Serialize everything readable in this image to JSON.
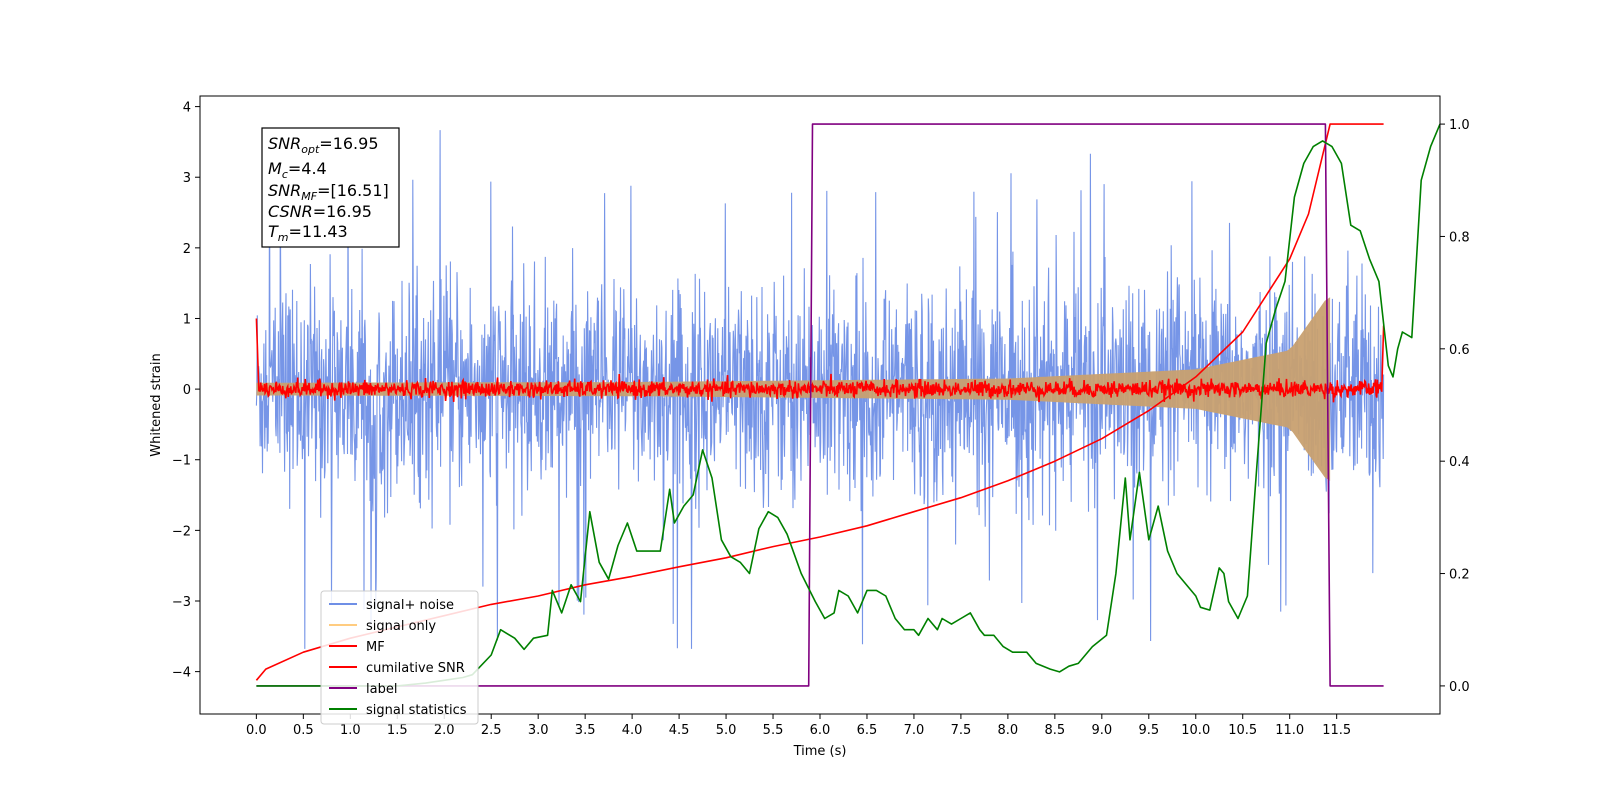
{
  "chart_data": {
    "type": "line",
    "xlabel": "Time (s)",
    "ylabel": "Whitened strain",
    "xlim": [
      -0.6,
      12.6
    ],
    "ylim": [
      -4.6,
      4.15
    ],
    "y2lim": [
      -0.05,
      1.05
    ],
    "xticks": [
      "0.0",
      "0.5",
      "1.0",
      "1.5",
      "2.0",
      "2.5",
      "3.0",
      "3.5",
      "4.0",
      "4.5",
      "5.0",
      "5.5",
      "6.0",
      "6.5",
      "7.0",
      "7.5",
      "8.0",
      "8.5",
      "9.0",
      "9.5",
      "10.0",
      "10.5",
      "11.0",
      "11.5"
    ],
    "yticks": [
      "4",
      "3",
      "2",
      "1",
      "0",
      "−1",
      "−2",
      "−3",
      "−4"
    ],
    "y2ticks": [
      "1.0",
      "0.8",
      "0.6",
      "0.4",
      "0.2",
      "0.0"
    ],
    "info_box": [
      {
        "base": "SNR",
        "sub": "opt",
        "value": "=16.95"
      },
      {
        "base": "M",
        "sub": "c",
        "value": "=4.4"
      },
      {
        "base": "SNR",
        "sub": "MF",
        "value": "=[16.51]"
      },
      {
        "base": "CSNR",
        "sub": "",
        "value": "=16.95"
      },
      {
        "base": "T",
        "sub": "m",
        "value": "=11.43"
      }
    ],
    "legend_position": "lower-left",
    "grid": false,
    "series": [
      {
        "name": "signal+ noise",
        "color": "#6f8fe6",
        "axis": "left",
        "kind": "noise",
        "x_range": [
          0.0,
          12.0
        ],
        "amplitude_typical": 1.5,
        "amplitude_peak": 3.75
      },
      {
        "name": "signal only",
        "color": "#ffcc80",
        "axis": "left",
        "kind": "chirp",
        "x_range": [
          0.0,
          11.43
        ],
        "envelope": [
          [
            0.0,
            0.09
          ],
          [
            4.0,
            0.1
          ],
          [
            8.0,
            0.15
          ],
          [
            10.0,
            0.28
          ],
          [
            11.0,
            0.55
          ],
          [
            11.4,
            1.3
          ]
        ]
      },
      {
        "name": "MF",
        "color": "#ff0000",
        "axis": "left",
        "kind": "noise",
        "x_range": [
          0.0,
          12.0
        ],
        "amplitude_typical": 0.06,
        "edge_values": [
          1.0,
          0.9
        ]
      },
      {
        "name": "cumilative SNR",
        "color": "#ff0000",
        "axis": "right",
        "points": [
          [
            0.0,
            0.01
          ],
          [
            0.1,
            0.03
          ],
          [
            0.5,
            0.06
          ],
          [
            1.0,
            0.085
          ],
          [
            1.5,
            0.105
          ],
          [
            2.0,
            0.125
          ],
          [
            2.5,
            0.145
          ],
          [
            3.0,
            0.16
          ],
          [
            3.5,
            0.18
          ],
          [
            4.0,
            0.195
          ],
          [
            4.5,
            0.212
          ],
          [
            5.0,
            0.228
          ],
          [
            5.5,
            0.248
          ],
          [
            6.0,
            0.265
          ],
          [
            6.5,
            0.285
          ],
          [
            7.0,
            0.31
          ],
          [
            7.5,
            0.335
          ],
          [
            8.0,
            0.365
          ],
          [
            8.5,
            0.4
          ],
          [
            9.0,
            0.44
          ],
          [
            9.5,
            0.49
          ],
          [
            10.0,
            0.55
          ],
          [
            10.5,
            0.63
          ],
          [
            11.0,
            0.76
          ],
          [
            11.2,
            0.84
          ],
          [
            11.43,
            1.0
          ],
          [
            12.0,
            1.0
          ]
        ]
      },
      {
        "name": "label",
        "color": "#800080",
        "axis": "right",
        "points": [
          [
            0.0,
            0.0
          ],
          [
            5.88,
            0.0
          ],
          [
            5.92,
            1.0
          ],
          [
            11.38,
            1.0
          ],
          [
            11.43,
            0.0
          ],
          [
            12.0,
            0.0
          ]
        ]
      },
      {
        "name": "signal statistics",
        "color": "#008000",
        "axis": "right",
        "points": [
          [
            0.0,
            0.0
          ],
          [
            0.5,
            0.0
          ],
          [
            1.0,
            0.0
          ],
          [
            1.5,
            0.0
          ],
          [
            1.8,
            0.005
          ],
          [
            2.0,
            0.01
          ],
          [
            2.2,
            0.015
          ],
          [
            2.3,
            0.02
          ],
          [
            2.5,
            0.055
          ],
          [
            2.6,
            0.1
          ],
          [
            2.75,
            0.085
          ],
          [
            2.85,
            0.065
          ],
          [
            2.95,
            0.085
          ],
          [
            3.1,
            0.09
          ],
          [
            3.15,
            0.17
          ],
          [
            3.25,
            0.13
          ],
          [
            3.35,
            0.18
          ],
          [
            3.45,
            0.15
          ],
          [
            3.55,
            0.31
          ],
          [
            3.65,
            0.22
          ],
          [
            3.75,
            0.19
          ],
          [
            3.85,
            0.25
          ],
          [
            3.95,
            0.29
          ],
          [
            4.05,
            0.24
          ],
          [
            4.15,
            0.24
          ],
          [
            4.3,
            0.24
          ],
          [
            4.4,
            0.35
          ],
          [
            4.45,
            0.29
          ],
          [
            4.55,
            0.32
          ],
          [
            4.65,
            0.34
          ],
          [
            4.75,
            0.42
          ],
          [
            4.85,
            0.37
          ],
          [
            4.95,
            0.26
          ],
          [
            5.05,
            0.23
          ],
          [
            5.15,
            0.22
          ],
          [
            5.25,
            0.2
          ],
          [
            5.35,
            0.28
          ],
          [
            5.45,
            0.31
          ],
          [
            5.55,
            0.3
          ],
          [
            5.65,
            0.27
          ],
          [
            5.8,
            0.2
          ],
          [
            5.95,
            0.15
          ],
          [
            6.05,
            0.12
          ],
          [
            6.15,
            0.13
          ],
          [
            6.2,
            0.17
          ],
          [
            6.3,
            0.16
          ],
          [
            6.4,
            0.13
          ],
          [
            6.5,
            0.17
          ],
          [
            6.6,
            0.17
          ],
          [
            6.7,
            0.16
          ],
          [
            6.8,
            0.12
          ],
          [
            6.9,
            0.1
          ],
          [
            7.0,
            0.1
          ],
          [
            7.05,
            0.09
          ],
          [
            7.15,
            0.12
          ],
          [
            7.25,
            0.1
          ],
          [
            7.3,
            0.12
          ],
          [
            7.4,
            0.11
          ],
          [
            7.5,
            0.12
          ],
          [
            7.6,
            0.13
          ],
          [
            7.7,
            0.1
          ],
          [
            7.75,
            0.09
          ],
          [
            7.85,
            0.09
          ],
          [
            7.95,
            0.07
          ],
          [
            8.05,
            0.06
          ],
          [
            8.2,
            0.06
          ],
          [
            8.3,
            0.04
          ],
          [
            8.45,
            0.03
          ],
          [
            8.55,
            0.025
          ],
          [
            8.65,
            0.035
          ],
          [
            8.75,
            0.04
          ],
          [
            8.9,
            0.07
          ],
          [
            9.05,
            0.09
          ],
          [
            9.15,
            0.2
          ],
          [
            9.25,
            0.37
          ],
          [
            9.3,
            0.26
          ],
          [
            9.4,
            0.38
          ],
          [
            9.5,
            0.26
          ],
          [
            9.6,
            0.32
          ],
          [
            9.7,
            0.24
          ],
          [
            9.8,
            0.2
          ],
          [
            9.9,
            0.18
          ],
          [
            10.0,
            0.16
          ],
          [
            10.05,
            0.14
          ],
          [
            10.15,
            0.135
          ],
          [
            10.25,
            0.21
          ],
          [
            10.3,
            0.2
          ],
          [
            10.35,
            0.15
          ],
          [
            10.45,
            0.12
          ],
          [
            10.55,
            0.16
          ],
          [
            10.65,
            0.39
          ],
          [
            10.75,
            0.61
          ],
          [
            10.85,
            0.67
          ],
          [
            10.95,
            0.72
          ],
          [
            11.05,
            0.87
          ],
          [
            11.15,
            0.93
          ],
          [
            11.25,
            0.96
          ],
          [
            11.35,
            0.97
          ],
          [
            11.45,
            0.96
          ],
          [
            11.55,
            0.93
          ],
          [
            11.65,
            0.82
          ],
          [
            11.75,
            0.81
          ],
          [
            11.85,
            0.76
          ],
          [
            11.95,
            0.72
          ],
          [
            12.05,
            0.57
          ],
          [
            12.1,
            0.55
          ],
          [
            12.15,
            0.6
          ],
          [
            12.2,
            0.63
          ],
          [
            12.3,
            0.62
          ],
          [
            12.4,
            0.9
          ],
          [
            12.5,
            0.96
          ],
          [
            12.6,
            1.0
          ]
        ]
      }
    ]
  },
  "legend": {
    "items": [
      {
        "label": "signal+ noise",
        "color": "#6f8fe6"
      },
      {
        "label": "signal only",
        "color": "#ffcc80"
      },
      {
        "label": "MF",
        "color": "#ff0000"
      },
      {
        "label": "cumilative SNR",
        "color": "#ff0000"
      },
      {
        "label": "label",
        "color": "#800080"
      },
      {
        "label": "signal statistics",
        "color": "#008000"
      }
    ]
  }
}
